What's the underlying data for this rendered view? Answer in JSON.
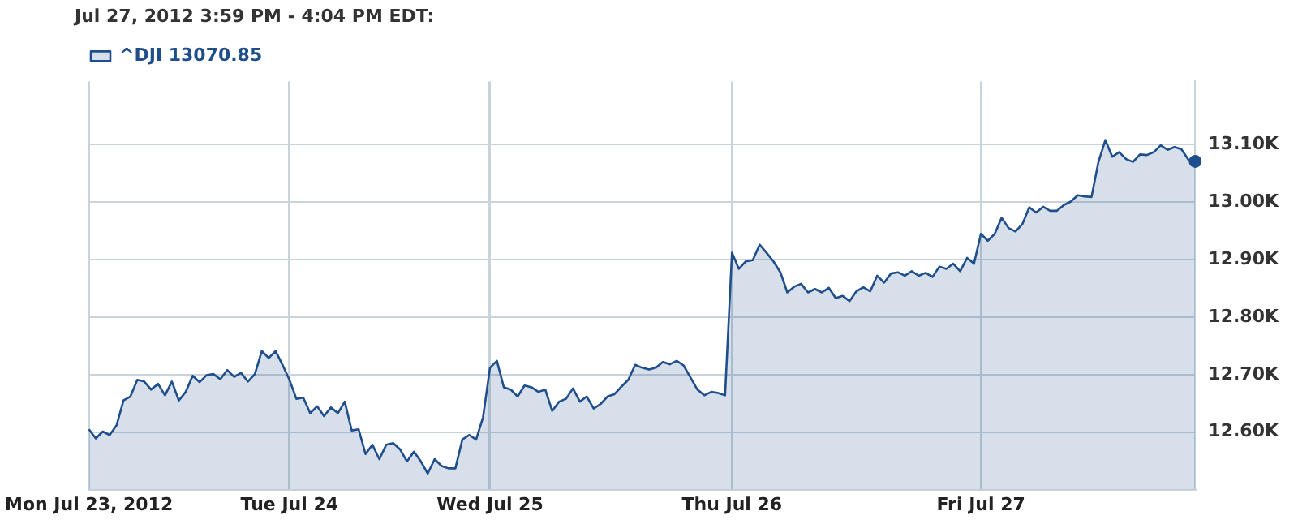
{
  "chart_data": {
    "type": "area",
    "title": "Jul 27, 2012 3:59 PM - 4:04 PM EDT:",
    "categories": [
      "Mon Jul 23, 2012",
      null,
      null,
      null,
      null,
      null,
      null,
      null,
      null,
      null,
      null,
      null,
      null,
      null,
      null,
      null,
      null,
      null,
      null,
      null,
      null,
      null,
      null,
      null,
      null,
      null,
      null,
      null,
      null,
      "Tue Jul 24",
      null,
      null,
      null,
      null,
      null,
      null,
      null,
      null,
      null,
      null,
      null,
      null,
      null,
      null,
      null,
      null,
      null,
      null,
      null,
      null,
      null,
      null,
      null,
      null,
      null,
      null,
      null,
      null,
      "Wed Jul 25",
      null,
      null,
      null,
      null,
      null,
      null,
      null,
      null,
      null,
      null,
      null,
      null,
      null,
      null,
      null,
      null,
      null,
      null,
      null,
      null,
      null,
      null,
      null,
      null,
      null,
      null,
      null,
      null,
      null,
      null,
      null,
      null,
      null,
      null,
      "Thu Jul 26",
      null,
      null,
      null,
      null,
      null,
      null,
      null,
      null,
      null,
      null,
      null,
      null,
      null,
      null,
      null,
      null,
      null,
      null,
      null,
      null,
      null,
      null,
      null,
      null,
      null,
      null,
      null,
      null,
      null,
      null,
      null,
      null,
      null,
      null,
      null,
      "Fri Jul 27",
      null,
      null,
      null,
      null,
      null,
      null,
      null,
      null,
      null,
      null,
      null,
      null,
      null,
      null,
      null,
      null,
      null,
      null,
      null,
      null,
      null,
      null,
      null,
      null,
      null,
      null,
      null,
      null,
      null,
      null,
      null
    ],
    "ylim": [
      12500,
      13210
    ],
    "yticks": [
      {
        "value": 12600,
        "label": "12.60K"
      },
      {
        "value": 12700,
        "label": "12.70K"
      },
      {
        "value": 12800,
        "label": "12.80K"
      },
      {
        "value": 12900,
        "label": "12.90K"
      },
      {
        "value": 13000,
        "label": "13.00K"
      },
      {
        "value": 13100,
        "label": "13.10K"
      }
    ],
    "grid": true,
    "legend": "top left",
    "marker": "none",
    "line_style": "solid",
    "series": [
      {
        "name": "^DJI 13070.85",
        "color": "#1f4e8c",
        "values": [
          12605,
          12589,
          12601,
          12595,
          12612,
          12655,
          12662,
          12691,
          12688,
          12674,
          12684,
          12664,
          12688,
          12655,
          12670,
          12698,
          12687,
          12699,
          12701,
          12692,
          12708,
          12696,
          12703,
          12688,
          12701,
          12741,
          12729,
          12741,
          12717,
          12691,
          12658,
          12660,
          12633,
          12645,
          12628,
          12643,
          12633,
          12653,
          12603,
          12605,
          12562,
          12578,
          12553,
          12578,
          12581,
          12570,
          12549,
          12566,
          12549,
          12528,
          12553,
          12541,
          12537,
          12537,
          12587,
          12595,
          12587,
          12626,
          12712,
          12724,
          12678,
          12674,
          12662,
          12681,
          12678,
          12670,
          12674,
          12637,
          12653,
          12658,
          12676,
          12653,
          12662,
          12641,
          12649,
          12662,
          12666,
          12679,
          12691,
          12717,
          12712,
          12709,
          12712,
          12722,
          12718,
          12724,
          12716,
          12695,
          12674,
          12664,
          12670,
          12668,
          12664,
          12912,
          12884,
          12897,
          12899,
          12926,
          12912,
          12897,
          12878,
          12843,
          12853,
          12858,
          12843,
          12849,
          12843,
          12851,
          12833,
          12837,
          12828,
          12845,
          12852,
          12845,
          12872,
          12860,
          12876,
          12878,
          12872,
          12880,
          12872,
          12877,
          12870,
          12888,
          12884,
          12893,
          12880,
          12903,
          12893,
          12945,
          12933,
          12945,
          12973,
          12955,
          12949,
          12962,
          12991,
          12982,
          12992,
          12985,
          12985,
          12995,
          13001,
          13012,
          13010,
          13009,
          13070,
          13108,
          13079,
          13087,
          13075,
          13070,
          13083,
          13082,
          13087,
          13099,
          13091,
          13096,
          13092,
          13074,
          13071
        ]
      },
      {
        "type": "scatter",
        "marker": "circle",
        "color": "#1f4e8c",
        "values": [
          null,
          null,
          null,
          null,
          null,
          null,
          null,
          null,
          null,
          null,
          null,
          null,
          null,
          null,
          null,
          null,
          null,
          null,
          null,
          null,
          null,
          null,
          null,
          null,
          null,
          null,
          null,
          null,
          null,
          null,
          null,
          null,
          null,
          null,
          null,
          null,
          null,
          null,
          null,
          null,
          null,
          null,
          null,
          null,
          null,
          null,
          null,
          null,
          null,
          null,
          null,
          null,
          null,
          null,
          null,
          null,
          null,
          null,
          null,
          null,
          null,
          null,
          null,
          null,
          null,
          null,
          null,
          null,
          null,
          null,
          null,
          null,
          null,
          null,
          null,
          null,
          null,
          null,
          null,
          null,
          null,
          null,
          null,
          null,
          null,
          null,
          null,
          null,
          null,
          null,
          null,
          null,
          null,
          null,
          null,
          null,
          null,
          null,
          null,
          null,
          null,
          null,
          null,
          null,
          null,
          null,
          null,
          null,
          null,
          null,
          null,
          null,
          null,
          null,
          null,
          null,
          null,
          null,
          null,
          null,
          null,
          null,
          null,
          null,
          null,
          null,
          null,
          null,
          null,
          null,
          null,
          null,
          null,
          null,
          null,
          null,
          null,
          null,
          null,
          null,
          null,
          null,
          null,
          null,
          null,
          null,
          null,
          null,
          null,
          null,
          null,
          null,
          null,
          null,
          null,
          null,
          null,
          null,
          null,
          null,
          13071
        ]
      }
    ]
  }
}
